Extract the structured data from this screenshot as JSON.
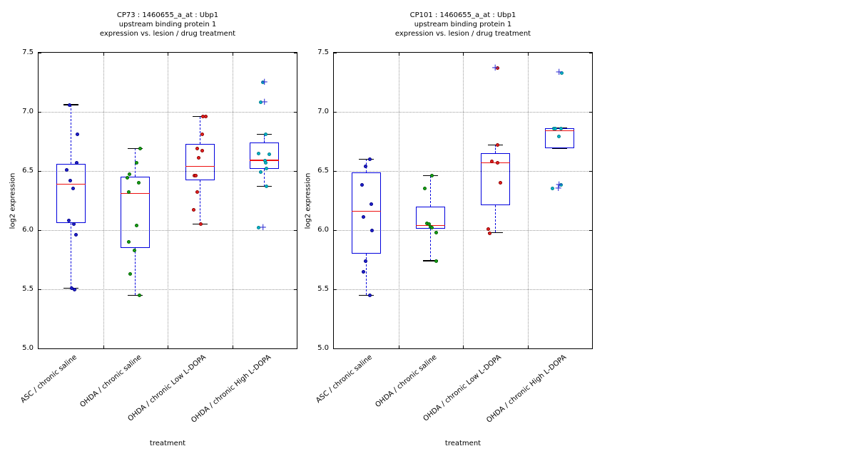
{
  "style": {
    "background": "#ffffff",
    "axis_color": "#000000",
    "grid_color": "#9a9a9a",
    "box_color": "#0000dd",
    "median_color": "#ee1111",
    "whisker_color": "#0000dd",
    "cap_color": "#000000",
    "flier_color": "#3434d4",
    "text_color": "#000000"
  },
  "chart_data": [
    {
      "type": "boxplot-with-scatter",
      "title": "CP73 : 1460655_a_at : Ubp1",
      "subtitle1": "upstream binding protein 1",
      "subtitle2": "expression vs. lesion / drug treatment",
      "xlabel": "treatment",
      "ylabel": "log2 expression",
      "ylim": [
        5.0,
        7.5
      ],
      "yticks": [
        "7.5",
        "7.0",
        "6.5",
        "6.0",
        "5.5",
        "5.0"
      ],
      "grid": true,
      "categories": [
        "ASC / chronic saline",
        "OHDA / chronic saline",
        "OHDA / chronic Low L-DOPA",
        "OHDA / chronic High L-DOPA"
      ],
      "groups": [
        {
          "label": "ASC / chronic saline",
          "point_color": "#2222cc",
          "point_edge": "#00008b",
          "box": {
            "whisker_low": 5.51,
            "q1": 6.06,
            "median": 6.39,
            "q3": 6.56,
            "whisker_high": 7.06
          },
          "points": [
            [
              7.06,
              -2
            ],
            [
              6.81,
              9
            ],
            [
              6.57,
              8
            ],
            [
              6.51,
              -6
            ],
            [
              6.42,
              -1
            ],
            [
              6.35,
              3
            ],
            [
              6.08,
              -3
            ],
            [
              6.05,
              4
            ],
            [
              5.96,
              7
            ],
            [
              5.51,
              1
            ],
            [
              5.5,
              5
            ]
          ],
          "fliers": []
        },
        {
          "label": "OHDA / chronic saline",
          "point_color": "#18a018",
          "point_edge": "#006400",
          "box": {
            "whisker_low": 5.45,
            "q1": 5.85,
            "median": 6.31,
            "q3": 6.45,
            "whisker_high": 6.69
          },
          "points": [
            [
              6.69,
              7
            ],
            [
              6.57,
              2
            ],
            [
              6.47,
              -8
            ],
            [
              6.44,
              -11
            ],
            [
              6.4,
              5
            ],
            [
              6.32,
              -9
            ],
            [
              6.04,
              2
            ],
            [
              5.9,
              -9
            ],
            [
              5.83,
              -1
            ],
            [
              5.63,
              -7
            ],
            [
              5.45,
              6
            ]
          ],
          "fliers": []
        },
        {
          "label": "OHDA / chronic Low L-DOPA",
          "point_color": "#e82020",
          "point_edge": "#8b0000",
          "box": {
            "whisker_low": 6.05,
            "q1": 6.42,
            "median": 6.54,
            "q3": 6.73,
            "whisker_high": 6.96
          },
          "points": [
            [
              6.96,
              4
            ],
            [
              6.96,
              8
            ],
            [
              6.81,
              3
            ],
            [
              6.69,
              -4
            ],
            [
              6.67,
              3
            ],
            [
              6.61,
              -2
            ],
            [
              6.46,
              -8
            ],
            [
              6.46,
              -6
            ],
            [
              6.32,
              -4
            ],
            [
              6.17,
              -9
            ],
            [
              6.05,
              1
            ]
          ],
          "fliers": []
        },
        {
          "label": "OHDA / chronic High L-DOPA",
          "point_color": "#00b5c8",
          "point_edge": "#007f8f",
          "box": {
            "whisker_low": 6.37,
            "q1": 6.52,
            "median": 6.59,
            "q3": 6.74,
            "whisker_high": 6.81
          },
          "points": [
            [
              7.25,
              -2
            ],
            [
              7.08,
              -5
            ],
            [
              6.81,
              2
            ],
            [
              6.65,
              -8
            ],
            [
              6.64,
              7
            ],
            [
              6.59,
              1
            ],
            [
              6.57,
              2
            ],
            [
              6.52,
              3
            ],
            [
              6.49,
              -5
            ],
            [
              6.37,
              3
            ],
            [
              6.02,
              -8
            ]
          ],
          "fliers": [
            [
              7.25,
              -1
            ],
            [
              7.08,
              -1
            ],
            [
              6.02,
              -3
            ]
          ]
        }
      ]
    },
    {
      "type": "boxplot-with-scatter",
      "title": "CP101 : 1460655_a_at : Ubp1",
      "subtitle1": "upstream binding protein 1",
      "subtitle2": "expression vs. lesion / drug treatment",
      "xlabel": "treatment",
      "ylabel": "log2 expression",
      "ylim": [
        5.0,
        7.5
      ],
      "yticks": [
        "7.5",
        "7.0",
        "6.5",
        "6.0",
        "5.5",
        "5.0"
      ],
      "grid": true,
      "categories": [
        "ASC / chronic saline",
        "OHDA / chronic saline",
        "OHDA / chronic Low L-DOPA",
        "OHDA / chronic High L-DOPA"
      ],
      "groups": [
        {
          "label": "ASC / chronic saline",
          "point_color": "#2222cc",
          "point_edge": "#00008b",
          "box": {
            "whisker_low": 5.45,
            "q1": 5.8,
            "median": 6.16,
            "q3": 6.49,
            "whisker_high": 6.6
          },
          "points": [
            [
              6.6,
              5
            ],
            [
              6.54,
              -1
            ],
            [
              6.38,
              -6
            ],
            [
              6.22,
              7
            ],
            [
              6.11,
              -4
            ],
            [
              6.0,
              8
            ],
            [
              5.74,
              -1
            ],
            [
              5.65,
              -4
            ],
            [
              5.45,
              5
            ]
          ],
          "fliers": []
        },
        {
          "label": "OHDA / chronic saline",
          "point_color": "#18a018",
          "point_edge": "#006400",
          "box": {
            "whisker_low": 5.74,
            "q1": 6.01,
            "median": 6.04,
            "q3": 6.2,
            "whisker_high": 6.46
          },
          "points": [
            [
              6.46,
              2
            ],
            [
              6.35,
              -8
            ],
            [
              6.06,
              -5
            ],
            [
              6.05,
              -2
            ],
            [
              6.03,
              0
            ],
            [
              6.02,
              2
            ],
            [
              5.98,
              8
            ],
            [
              5.74,
              8
            ]
          ],
          "fliers": []
        },
        {
          "label": "OHDA / chronic Low L-DOPA",
          "point_color": "#e82020",
          "point_edge": "#8b0000",
          "box": {
            "whisker_low": 5.98,
            "q1": 6.21,
            "median": 6.57,
            "q3": 6.65,
            "whisker_high": 6.72
          },
          "points": [
            [
              7.37,
              3
            ],
            [
              6.72,
              3
            ],
            [
              6.58,
              -5
            ],
            [
              6.57,
              3
            ],
            [
              6.4,
              7
            ],
            [
              6.01,
              -10
            ],
            [
              5.97,
              -8
            ]
          ],
          "fliers": [
            [
              7.37,
              -1
            ]
          ]
        },
        {
          "label": "OHDA / chronic High L-DOPA",
          "point_color": "#00b5c8",
          "point_edge": "#007f8f",
          "box": {
            "whisker_low": 6.69,
            "q1": 6.69,
            "median": 6.84,
            "q3": 6.86,
            "whisker_high": 6.86
          },
          "points": [
            [
              7.33,
              3
            ],
            [
              6.86,
              -8
            ],
            [
              6.86,
              -6
            ],
            [
              6.86,
              2
            ],
            [
              6.79,
              -1
            ],
            [
              6.38,
              2
            ],
            [
              6.35,
              -10
            ]
          ],
          "fliers": [
            [
              7.33,
              -2
            ],
            [
              6.38,
              -2
            ],
            [
              6.35,
              -3
            ]
          ]
        }
      ]
    }
  ]
}
